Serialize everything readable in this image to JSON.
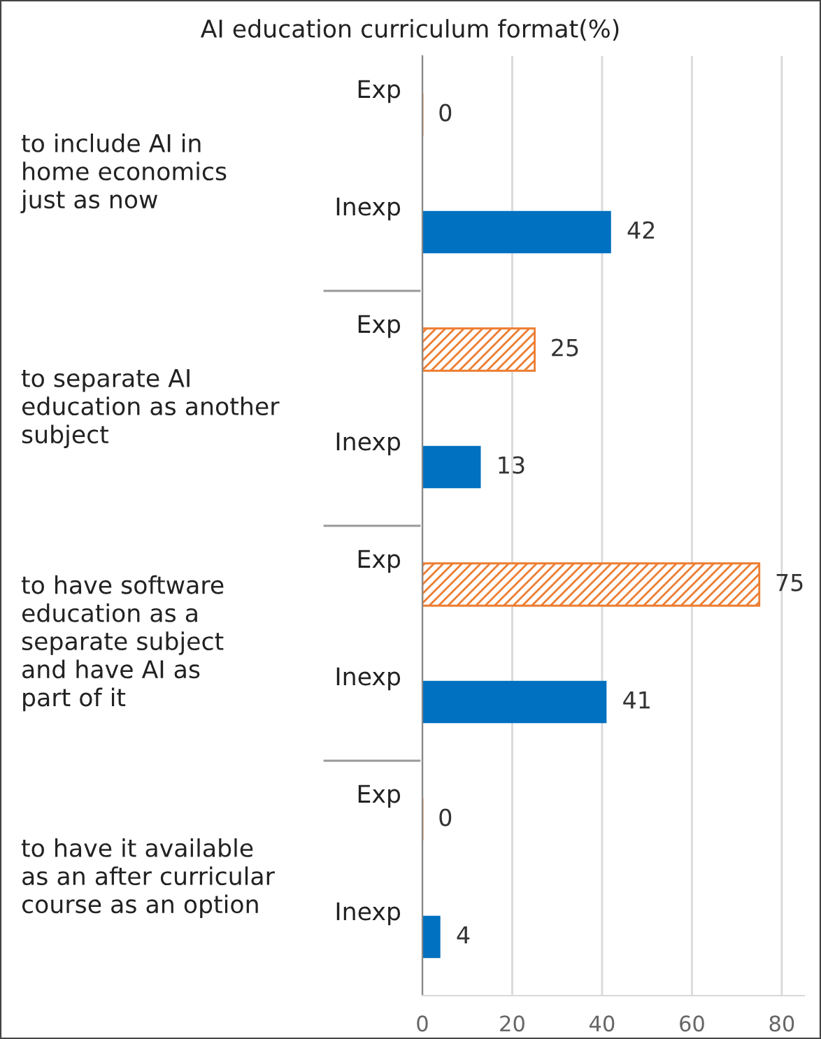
{
  "chart_data": {
    "type": "bar",
    "orientation": "horizontal",
    "title": "AI education curriculum format(%)",
    "categories": [
      "to include AI in\nhome economics\njust as now",
      "to separate AI\neducation as another\nsubject",
      "to have software\neducation as a\nseparate subject\nand have AI as\npart of it",
      "to have it available\nas an after curricular\ncourse as an option"
    ],
    "series": [
      {
        "name": "Exp",
        "color": "#ed7d31",
        "values": [
          0,
          25,
          75,
          0
        ]
      },
      {
        "name": "Inexp",
        "color": "#0070c0",
        "values": [
          42,
          13,
          41,
          4
        ]
      }
    ],
    "xlim": [
      0,
      85
    ],
    "xticks": [
      0,
      20,
      40,
      60,
      80
    ],
    "grid": "x",
    "data_labels": true,
    "legend": false
  }
}
